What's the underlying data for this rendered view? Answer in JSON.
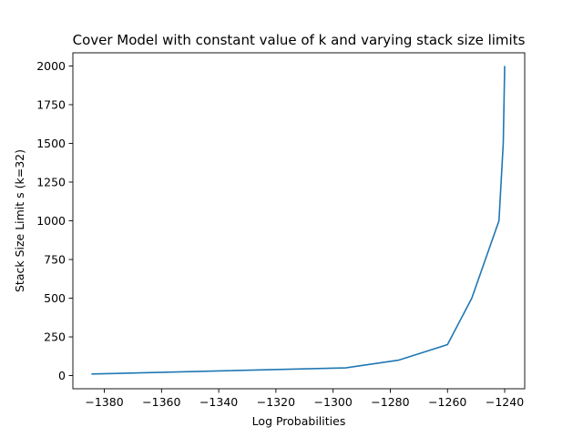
{
  "chart_data": {
    "type": "line",
    "title": "Cover Model with constant value of k and varying stack size limits",
    "xlabel": "Log Probabilities",
    "ylabel": "Stack Size Limit s (k=32)",
    "xlim": [
      -1391,
      -1233
    ],
    "ylim": [
      -85,
      2085
    ],
    "x_ticks": [
      -1380,
      -1360,
      -1340,
      -1320,
      -1300,
      -1280,
      -1260,
      -1240
    ],
    "x_tick_labels": [
      "−1380",
      "−1360",
      "−1340",
      "−1320",
      "−1300",
      "−1280",
      "−1260",
      "−1240"
    ],
    "y_ticks": [
      0,
      250,
      500,
      750,
      1000,
      1250,
      1500,
      1750,
      2000
    ],
    "y_tick_labels": [
      "0",
      "250",
      "500",
      "750",
      "1000",
      "1250",
      "1500",
      "1750",
      "2000"
    ],
    "grid": false,
    "series": [
      {
        "color": "#1f77b4",
        "x": [
          -1384.5,
          -1295.5,
          -1277,
          -1260,
          -1251.5,
          -1242,
          -1240.5,
          -1240
        ],
        "y": [
          10,
          50,
          100,
          200,
          500,
          1000,
          1500,
          2000
        ]
      }
    ]
  }
}
